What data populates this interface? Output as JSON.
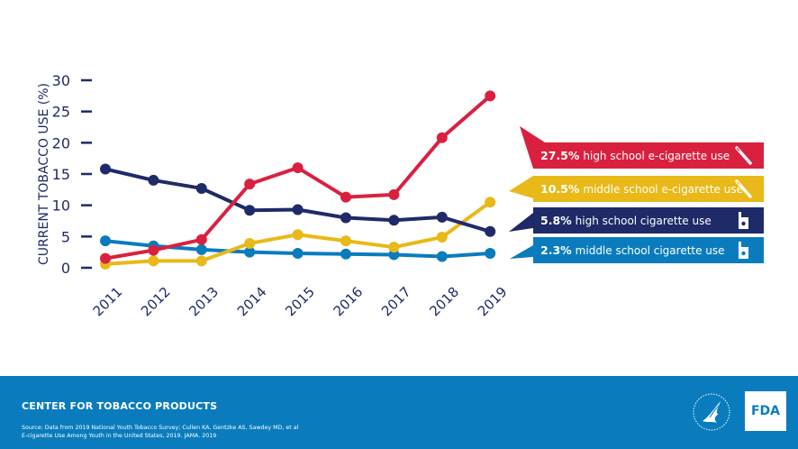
{
  "chart_data": {
    "type": "line",
    "title": "",
    "xlabel": "",
    "ylabel": "CURRENT TOBACCO USE  (%)",
    "ylim": [
      0,
      30
    ],
    "yticks": [
      "0",
      "5",
      "10",
      "15",
      "20",
      "25",
      "30"
    ],
    "x": [
      "2011",
      "2012",
      "2013",
      "2014",
      "2015",
      "2016",
      "2017",
      "2018",
      "2019"
    ],
    "grid": false,
    "legend_position": "right",
    "series": [
      {
        "name": "high school e-cigarette use",
        "color": "#d9213f",
        "values": [
          1.5,
          2.8,
          4.5,
          13.4,
          16.0,
          11.3,
          11.7,
          20.8,
          27.5
        ]
      },
      {
        "name": "middle school e-cigarette use",
        "color": "#e8b918",
        "values": [
          0.6,
          1.1,
          1.1,
          3.9,
          5.3,
          4.3,
          3.3,
          4.9,
          10.5
        ]
      },
      {
        "name": "high school cigarette use",
        "color": "#1f2a68",
        "values": [
          15.8,
          14.0,
          12.7,
          9.2,
          9.3,
          8.0,
          7.6,
          8.1,
          5.8
        ]
      },
      {
        "name": "middle school cigarette use",
        "color": "#0a7cbd",
        "values": [
          4.3,
          3.5,
          2.9,
          2.5,
          2.3,
          2.2,
          2.1,
          1.8,
          2.3
        ]
      }
    ]
  },
  "legend": [
    {
      "value": "27.5%",
      "label": "high school e-cigarette use",
      "icon": "e-cigarette-icon",
      "color": "#d9213f"
    },
    {
      "value": "10.5%",
      "label": "middle school e-cigarette use",
      "icon": "e-cigarette-icon",
      "color": "#e8b918"
    },
    {
      "value": "5.8%",
      "label": "high school cigarette use",
      "icon": "cigarette-pack-icon",
      "color": "#1f2a68"
    },
    {
      "value": "2.3%",
      "label": "middle school cigarette use",
      "icon": "cigarette-pack-icon",
      "color": "#0a7cbd"
    }
  ],
  "footer": {
    "title": "CENTER FOR TOBACCO PRODUCTS",
    "source_line1": "Source: Data from 2019 National Youth Tobacco Survey; Cullen KA, Gentzke AS, Sawdey MD, et al",
    "source_line2": "E-cigarette Use Among Youth in the United States, 2019. JAMA. 2019",
    "fda_logo": "FDA"
  },
  "colors": {
    "axis": "#1f2a68",
    "footer_bg": "#0a7cbd"
  }
}
